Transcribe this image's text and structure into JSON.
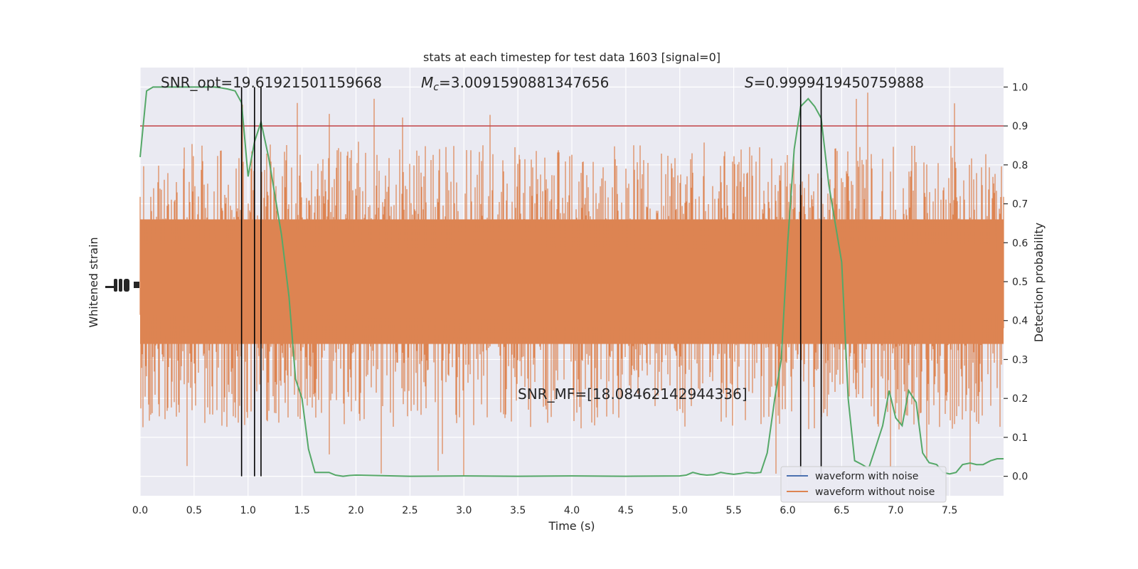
{
  "chart_data": {
    "type": "line",
    "title": "stats at each timestep for test data 1603 [signal=0]",
    "xlabel": "Time (s)",
    "ylabel_left": "Whitened strain",
    "ylabel_right": "Detection probability",
    "xlim": [
      0,
      8.0
    ],
    "ylim_right": [
      -0.05,
      1.05
    ],
    "x_ticks": [
      "0.0",
      "0.5",
      "1.0",
      "1.5",
      "2.0",
      "2.5",
      "3.0",
      "3.5",
      "4.0",
      "4.5",
      "5.0",
      "5.5",
      "6.0",
      "6.5",
      "7.0",
      "7.5"
    ],
    "x_tick_values": [
      0,
      0.5,
      1.0,
      1.5,
      2.0,
      2.5,
      3.0,
      3.5,
      4.0,
      4.5,
      5.0,
      5.5,
      6.0,
      6.5,
      7.0,
      7.5
    ],
    "y_right_ticks": [
      "0.0",
      "0.1",
      "0.2",
      "0.3",
      "0.4",
      "0.5",
      "0.6",
      "0.7",
      "0.8",
      "0.9",
      "1.0"
    ],
    "y_right_tick_values": [
      0,
      0.1,
      0.2,
      0.3,
      0.4,
      0.5,
      0.6,
      0.7,
      0.8,
      0.9,
      1.0
    ],
    "grid": true,
    "annotations": {
      "snr_opt": "SNR_opt=19.61921501159668",
      "mc_prefix": "M",
      "mc_sub": "c",
      "mc_value": "=3.0091590881347656",
      "s_prefix": "S",
      "s_value": "=0.9999419450759888",
      "snr_mf": "SNR_MF=[18.08462142944336]"
    },
    "threshold": 0.9,
    "vertical_lines_x": [
      0.94,
      1.06,
      1.12,
      6.12,
      6.31
    ],
    "detection_probability": {
      "x": [
        0.0,
        0.06,
        0.12,
        0.19,
        0.25,
        0.31,
        0.38,
        0.44,
        0.5,
        0.56,
        0.62,
        0.69,
        0.75,
        0.81,
        0.88,
        0.94,
        1.0,
        1.06,
        1.12,
        1.19,
        1.25,
        1.31,
        1.38,
        1.44,
        1.5,
        1.56,
        1.62,
        1.69,
        1.75,
        1.81,
        1.88,
        1.94,
        2.0,
        2.5,
        3.0,
        3.5,
        4.0,
        4.5,
        5.0,
        5.06,
        5.12,
        5.19,
        5.25,
        5.31,
        5.38,
        5.44,
        5.5,
        5.56,
        5.62,
        5.69,
        5.75,
        5.81,
        5.88,
        5.94,
        6.0,
        6.06,
        6.12,
        6.19,
        6.25,
        6.31,
        6.38,
        6.44,
        6.5,
        6.56,
        6.62,
        6.69,
        6.75,
        6.81,
        6.88,
        6.94,
        7.0,
        7.06,
        7.12,
        7.19,
        7.25,
        7.31,
        7.38,
        7.44,
        7.5,
        7.56,
        7.62,
        7.69,
        7.75,
        7.81,
        7.88,
        7.94,
        8.0
      ],
      "y": [
        0.82,
        0.99,
        1.0,
        1.0,
        1.0,
        1.0,
        1.0,
        1.0,
        1.0,
        1.0,
        1.0,
        1.0,
        0.998,
        0.995,
        0.99,
        0.96,
        0.77,
        0.86,
        0.91,
        0.82,
        0.72,
        0.62,
        0.46,
        0.25,
        0.2,
        0.07,
        0.01,
        0.01,
        0.01,
        0.003,
        0.0,
        0.002,
        0.003,
        0.0,
        0.001,
        0.0,
        0.001,
        0.0,
        0.001,
        0.003,
        0.01,
        0.005,
        0.003,
        0.004,
        0.01,
        0.007,
        0.005,
        0.007,
        0.01,
        0.008,
        0.01,
        0.06,
        0.2,
        0.3,
        0.6,
        0.84,
        0.95,
        0.97,
        0.95,
        0.92,
        0.75,
        0.65,
        0.55,
        0.2,
        0.04,
        0.03,
        0.02,
        0.07,
        0.13,
        0.22,
        0.15,
        0.13,
        0.22,
        0.19,
        0.06,
        0.035,
        0.03,
        0.01,
        0.006,
        0.01,
        0.03,
        0.034,
        0.03,
        0.03,
        0.04,
        0.045,
        0.045
      ]
    },
    "series": [
      {
        "name": "waveform with noise",
        "color": "#4c72b0"
      },
      {
        "name": "waveform without noise",
        "color": "#dd8452"
      }
    ],
    "colors": {
      "noise_band": "#dd8452",
      "probability_line": "#55a868",
      "threshold_line": "#c44e52",
      "plot_bg": "#eaeaf2",
      "grid": "#ffffff"
    },
    "legend_placement": "lower-right"
  }
}
